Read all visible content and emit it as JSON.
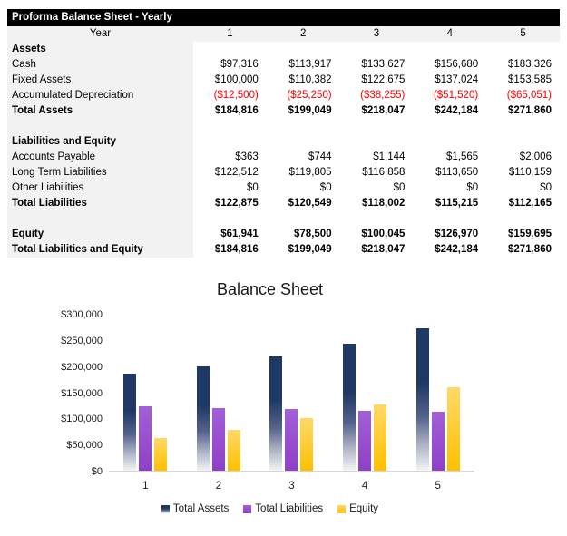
{
  "table": {
    "title": "Proforma Balance Sheet - Yearly",
    "year_label": "Year",
    "years": [
      "1",
      "2",
      "3",
      "4",
      "5"
    ],
    "rows": [
      {
        "label": "Assets",
        "style": "section",
        "values": [
          "",
          "",
          "",
          "",
          ""
        ]
      },
      {
        "label": "Cash",
        "style": "normal",
        "values": [
          "$97,316",
          "$113,917",
          "$133,627",
          "$156,680",
          "$183,326"
        ]
      },
      {
        "label": "Fixed Assets",
        "style": "normal",
        "values": [
          "$100,000",
          "$110,382",
          "$122,675",
          "$137,024",
          "$153,585"
        ]
      },
      {
        "label": "Accumulated Depreciation",
        "style": "negative",
        "values": [
          "($12,500)",
          "($25,250)",
          "($38,255)",
          "($51,520)",
          "($65,051)"
        ]
      },
      {
        "label": "Total Assets",
        "style": "total",
        "values": [
          "$184,816",
          "$199,049",
          "$218,047",
          "$242,184",
          "$271,860"
        ]
      },
      {
        "label": "",
        "style": "blank",
        "values": [
          "",
          "",
          "",
          "",
          ""
        ]
      },
      {
        "label": "Liabilities and Equity",
        "style": "section",
        "values": [
          "",
          "",
          "",
          "",
          ""
        ]
      },
      {
        "label": "Accounts Payable",
        "style": "normal",
        "values": [
          "$363",
          "$744",
          "$1,144",
          "$1,565",
          "$2,006"
        ]
      },
      {
        "label": "Long Term Liabilities",
        "style": "normal",
        "values": [
          "$122,512",
          "$119,805",
          "$116,858",
          "$113,650",
          "$110,159"
        ]
      },
      {
        "label": "Other Liabilities",
        "style": "normal",
        "values": [
          "$0",
          "$0",
          "$0",
          "$0",
          "$0"
        ]
      },
      {
        "label": "Total Liabilities",
        "style": "total",
        "values": [
          "$122,875",
          "$120,549",
          "$118,002",
          "$115,215",
          "$112,165"
        ]
      },
      {
        "label": "",
        "style": "blank",
        "values": [
          "",
          "",
          "",
          "",
          ""
        ]
      },
      {
        "label": "Equity",
        "style": "total",
        "values": [
          "$61,941",
          "$78,500",
          "$100,045",
          "$126,970",
          "$159,695"
        ]
      },
      {
        "label": "Total Liabilities and Equity",
        "style": "total",
        "values": [
          "$184,816",
          "$199,049",
          "$218,047",
          "$242,184",
          "$271,860"
        ]
      }
    ],
    "negative_color": "#FF0000",
    "header_bg": "#000000",
    "shaded_bg": "#F2F2F2"
  },
  "chart_data": {
    "type": "bar",
    "title": "Balance Sheet",
    "categories": [
      "1",
      "2",
      "3",
      "4",
      "5"
    ],
    "series": [
      {
        "name": "Total Assets",
        "values": [
          184816,
          199049,
          218047,
          242184,
          271860
        ],
        "gradient": [
          "#1F3864",
          "#1F3864 38%",
          "#53628A 62%",
          "#AEB4C6 82%",
          "#F4F4F7"
        ]
      },
      {
        "name": "Total Liabilities",
        "values": [
          122875,
          120549,
          118002,
          115215,
          112165
        ],
        "gradient": [
          "#A35FD8",
          "#8E40C6"
        ]
      },
      {
        "name": "Equity",
        "values": [
          61941,
          78500,
          100045,
          126970,
          159695
        ],
        "gradient": [
          "#FFD966",
          "#FFC000"
        ]
      }
    ],
    "ylim": [
      0,
      300000
    ],
    "ytick_step": 50000,
    "ytick_labels": [
      "$300,000",
      "$250,000",
      "$200,000",
      "$150,000",
      "$100,000",
      "$50,000",
      "$0"
    ],
    "xlabel": "",
    "ylabel": "",
    "grid": false,
    "legend_position": "bottom"
  }
}
